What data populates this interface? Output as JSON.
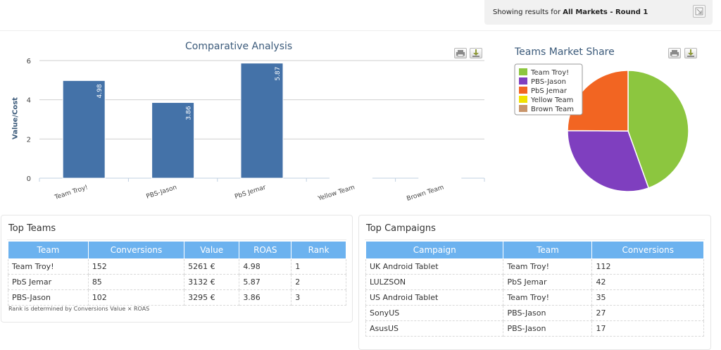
{
  "header": {
    "prefix": "Showing results for",
    "bold": "All Markets - Round 1"
  },
  "bar_chart": {
    "title": "Comparative Analysis"
  },
  "pie_chart": {
    "title": "Teams Market Share"
  },
  "chart_data": [
    {
      "type": "bar",
      "title": "Comparative Analysis",
      "xlabel": "",
      "ylabel": "Value/Cost",
      "categories": [
        "Team Troy!",
        "PBS-Jason",
        "PbS Jemar",
        "Yellow Team",
        "Brown Team"
      ],
      "values": [
        4.98,
        3.86,
        5.87,
        0,
        0
      ],
      "data_labels": [
        "4.98",
        "3.86",
        "5.87",
        "",
        ""
      ],
      "ylim": [
        0,
        6
      ],
      "yticks": [
        0,
        2,
        4,
        6
      ],
      "grid": true,
      "color": "#4472a8"
    },
    {
      "type": "pie",
      "title": "Teams Market Share",
      "labels": [
        "Team Troy!",
        "PBS-Jason",
        "PbS Jemar",
        "Yellow Team",
        "Brown Team"
      ],
      "values": [
        44.5,
        30.6,
        24.9,
        0,
        0
      ],
      "colors": [
        "#8cc63f",
        "#7f3fbf",
        "#f26522",
        "#f2e200",
        "#c8956b"
      ],
      "legend": "top-left"
    }
  ],
  "top_teams": {
    "title": "Top Teams",
    "headers": [
      "Team",
      "Conversions",
      "Value",
      "ROAS",
      "Rank"
    ],
    "rows": [
      [
        "Team Troy!",
        "152",
        "5261 €",
        "4.98",
        "1"
      ],
      [
        "PbS Jemar",
        "85",
        "3132 €",
        "5.87",
        "2"
      ],
      [
        "PBS-Jason",
        "102",
        "3295 €",
        "3.86",
        "3"
      ]
    ],
    "note": "Rank is determined by Conversions Value × ROAS"
  },
  "top_campaigns": {
    "title": "Top Campaigns",
    "headers": [
      "Campaign",
      "Team",
      "Conversions"
    ],
    "rows": [
      [
        "UK Android Tablet",
        "Team Troy!",
        "112"
      ],
      [
        "LULZSON",
        "PbS Jemar",
        "42"
      ],
      [
        "US Android Tablet",
        "Team Troy!",
        "35"
      ],
      [
        "SonyUS",
        "PBS-Jason",
        "27"
      ],
      [
        "AsusUS",
        "PBS-Jason",
        "17"
      ]
    ]
  }
}
